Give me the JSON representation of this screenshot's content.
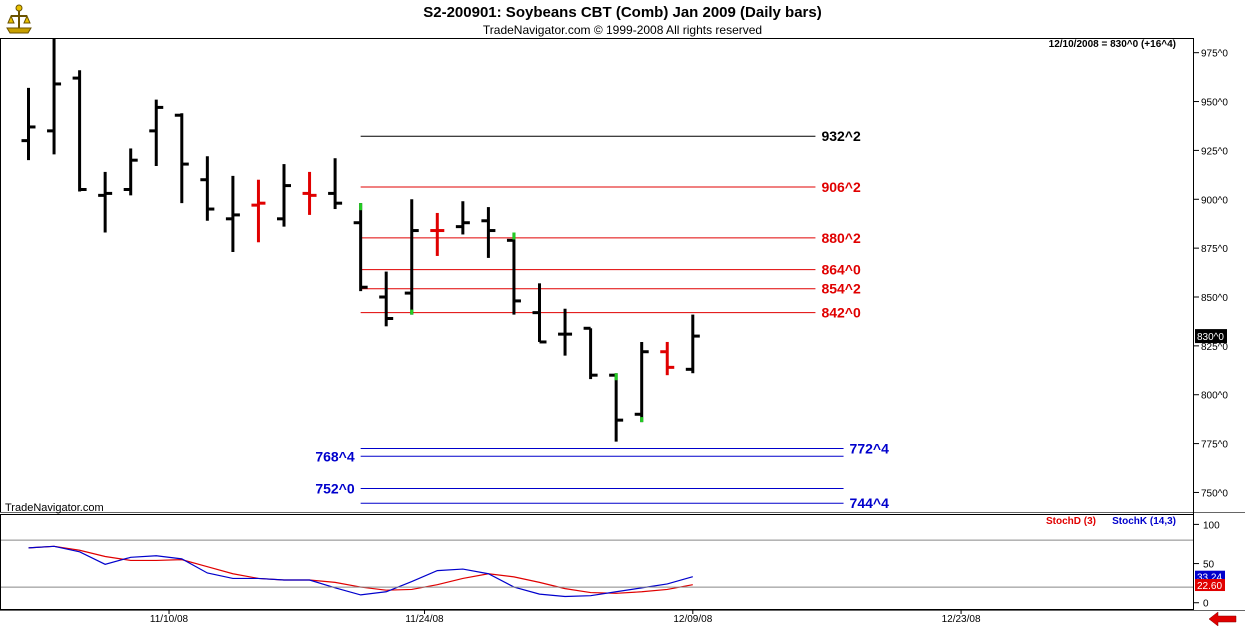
{
  "header": {
    "title": "S2-200901:  Soybeans CBT (Comb) Jan 2009  (Daily bars)",
    "copyright": "TradeNavigator.com © 1999-2008 All rights reserved",
    "info": "12/10/2008 = 830^0 (+16^4)"
  },
  "watermark": "TradeNavigator.com",
  "colors": {
    "bar": "#000000",
    "bar_red": "#e00000",
    "bar_green_tick": "#22cc22",
    "level_black": "#000000",
    "level_red": "#e00000",
    "level_blue": "#0000cc",
    "stoch_d": "#e00000",
    "stoch_k": "#0000cc",
    "grid": "#aaaaaa"
  },
  "icons": {
    "logo": "trade-navigator-logo-icon",
    "scroll": "red-left-arrow-icon"
  },
  "chart_data": [
    {
      "type": "ohlc",
      "title": "S2-200901:  Soybeans CBT (Comb) Jan 2009  (Daily bars)",
      "ylim": [
        740,
        982
      ],
      "y_ticks": [
        "975^0",
        "950^0",
        "925^0",
        "900^0",
        "875^0",
        "850^0",
        "825^0",
        "800^0",
        "775^0",
        "750^0"
      ],
      "y_tick_values": [
        975,
        950,
        925,
        900,
        875,
        850,
        825,
        800,
        775,
        750
      ],
      "last_price_label": "830^0",
      "last_price": 830,
      "x_ticks": [
        "11/10/08",
        "11/24/08",
        "12/09/08",
        "12/23/08"
      ],
      "x_tick_index": [
        5.5,
        15.5,
        26,
        36.5
      ],
      "bars": [
        {
          "o": 930,
          "h": 957,
          "l": 920,
          "c": 937
        },
        {
          "o": 935,
          "h": 982,
          "l": 923,
          "c": 959
        },
        {
          "o": 962,
          "h": 966,
          "l": 904,
          "c": 905
        },
        {
          "o": 902,
          "h": 914,
          "l": 883,
          "c": 903
        },
        {
          "o": 905,
          "h": 926,
          "l": 902,
          "c": 920
        },
        {
          "o": 935,
          "h": 951,
          "l": 917,
          "c": 947
        },
        {
          "o": 943,
          "h": 944,
          "l": 898,
          "c": 918
        },
        {
          "o": 910,
          "h": 922,
          "l": 889,
          "c": 895
        },
        {
          "o": 890,
          "h": 912,
          "l": 873,
          "c": 892
        },
        {
          "o": 897,
          "h": 910,
          "l": 878,
          "c": 898,
          "color": "red"
        },
        {
          "o": 890,
          "h": 918,
          "l": 886,
          "c": 907
        },
        {
          "o": 903,
          "h": 914,
          "l": 892,
          "c": 902,
          "color": "red"
        },
        {
          "o": 903,
          "h": 921,
          "l": 895,
          "c": 898
        },
        {
          "o": 888,
          "h": 898,
          "l": 853,
          "c": 855,
          "green_high": true
        },
        {
          "o": 850,
          "h": 863,
          "l": 835,
          "c": 839
        },
        {
          "o": 852,
          "h": 900,
          "l": 841,
          "c": 884,
          "green_low": true
        },
        {
          "o": 884,
          "h": 893,
          "l": 871,
          "c": 884,
          "color": "red"
        },
        {
          "o": 886,
          "h": 899,
          "l": 882,
          "c": 888
        },
        {
          "o": 889,
          "h": 896,
          "l": 870,
          "c": 884
        },
        {
          "o": 879,
          "h": 883,
          "l": 841,
          "c": 848,
          "green_high": true
        },
        {
          "o": 842,
          "h": 857,
          "l": 827,
          "c": 827
        },
        {
          "o": 831,
          "h": 844,
          "l": 820,
          "c": 831
        },
        {
          "o": 834,
          "h": 834,
          "l": 808,
          "c": 810
        },
        {
          "o": 810,
          "h": 811,
          "l": 776,
          "c": 787,
          "green_high": true
        },
        {
          "o": 790,
          "h": 827,
          "l": 786,
          "c": 822,
          "green_low": true
        },
        {
          "o": 822,
          "h": 827,
          "l": 810,
          "c": 814,
          "color": "red"
        },
        {
          "o": 813,
          "h": 841,
          "l": 811,
          "c": 830
        }
      ],
      "levels": [
        {
          "value": 932.25,
          "label": "932^2",
          "color": "black",
          "side": "right",
          "x0_bar": 13,
          "x1_bar": 30.8
        },
        {
          "value": 906.25,
          "label": "906^2",
          "color": "red",
          "side": "right",
          "x0_bar": 13,
          "x1_bar": 30.8
        },
        {
          "value": 880.25,
          "label": "880^2",
          "color": "red",
          "side": "right",
          "x0_bar": 13,
          "x1_bar": 30.8
        },
        {
          "value": 864,
          "label": "864^0",
          "color": "red",
          "side": "right",
          "x0_bar": 13,
          "x1_bar": 30.8
        },
        {
          "value": 854.25,
          "label": "854^2",
          "color": "red",
          "side": "right",
          "x0_bar": 13,
          "x1_bar": 30.8
        },
        {
          "value": 842,
          "label": "842^0",
          "color": "red",
          "side": "right",
          "x0_bar": 13,
          "x1_bar": 30.8
        },
        {
          "value": 772.5,
          "label": "772^4",
          "color": "blue",
          "side": "right",
          "x0_bar": 13,
          "x1_bar": 31.9
        },
        {
          "value": 768.5,
          "label": "768^4",
          "color": "blue",
          "side": "left",
          "x0_bar": 13,
          "x1_bar": 31.9
        },
        {
          "value": 752,
          "label": "752^0",
          "color": "blue",
          "side": "left",
          "x0_bar": 13,
          "x1_bar": 31.9
        },
        {
          "value": 744.5,
          "label": "744^4",
          "color": "blue",
          "side": "right",
          "x0_bar": 13,
          "x1_bar": 31.9
        }
      ]
    },
    {
      "type": "line",
      "title": "",
      "legend": [
        "StochD (3)",
        "StochK (14,3)"
      ],
      "ylim": [
        -8,
        112
      ],
      "y_ticks": [
        "100",
        "50",
        "0"
      ],
      "y_tick_values": [
        100,
        50,
        0
      ],
      "ref_lines": [
        80,
        20
      ],
      "last_values": {
        "k": "33.24",
        "d": "22.60"
      },
      "series": [
        {
          "name": "StochD (3)",
          "color": "red",
          "values": [
            70,
            72,
            67,
            59,
            54,
            54,
            55,
            46,
            37,
            31,
            29,
            29,
            26,
            20,
            16,
            17,
            23,
            31,
            37,
            33,
            26,
            18,
            13,
            12,
            14,
            17,
            23
          ]
        },
        {
          "name": "StochK (14,3)",
          "color": "blue",
          "values": [
            70,
            72,
            65,
            49,
            58,
            60,
            56,
            38,
            31,
            31,
            29,
            29,
            19,
            10,
            14,
            27,
            41,
            43,
            37,
            20,
            11,
            8,
            9,
            14,
            19,
            24,
            33.24
          ]
        }
      ]
    }
  ]
}
